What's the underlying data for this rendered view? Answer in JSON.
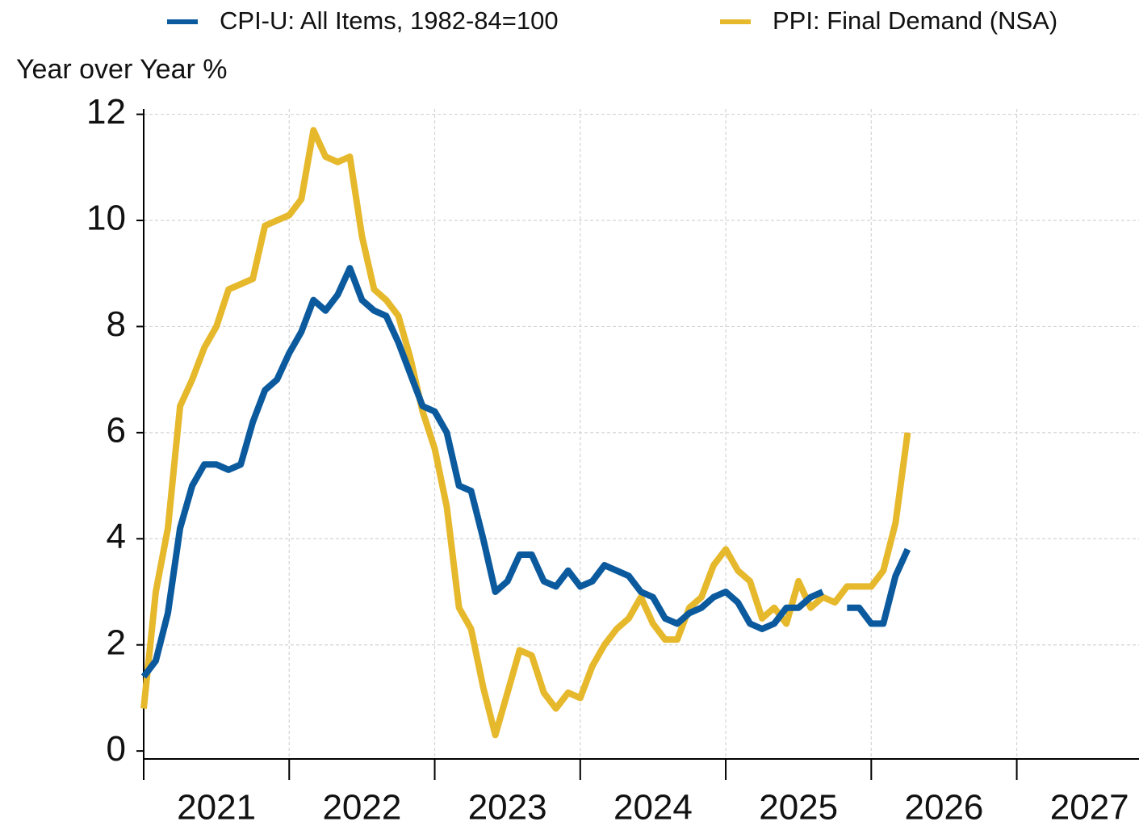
{
  "chart_data": {
    "type": "line",
    "y_label": "Year over Year %",
    "x": [
      "2021-01",
      "2021-02",
      "2021-03",
      "2021-04",
      "2021-05",
      "2021-06",
      "2021-07",
      "2021-08",
      "2021-09",
      "2021-10",
      "2021-11",
      "2021-12",
      "2022-01",
      "2022-02",
      "2022-03",
      "2022-04",
      "2022-05",
      "2022-06",
      "2022-07",
      "2022-08",
      "2022-09",
      "2022-10",
      "2022-11",
      "2022-12",
      "2023-01",
      "2023-02",
      "2023-03",
      "2023-04",
      "2023-05",
      "2023-06",
      "2023-07",
      "2023-08",
      "2023-09",
      "2023-10",
      "2023-11",
      "2023-12",
      "2024-01",
      "2024-02",
      "2024-03",
      "2024-04",
      "2024-05",
      "2024-06",
      "2024-07",
      "2024-08",
      "2024-09",
      "2024-10",
      "2024-11",
      "2024-12",
      "2025-01",
      "2025-02",
      "2025-03",
      "2025-04",
      "2025-05",
      "2025-06",
      "2025-07",
      "2025-08",
      "2025-09",
      "2025-10",
      "2025-11",
      "2025-12",
      "2026-01",
      "2026-02",
      "2026-03",
      "2026-04"
    ],
    "series": [
      {
        "name": "CPI-U: All Items, 1982-84=100",
        "color": "#0b5a9e",
        "values": [
          1.4,
          1.7,
          2.6,
          4.2,
          5.0,
          5.4,
          5.4,
          5.3,
          5.4,
          6.2,
          6.8,
          7.0,
          7.5,
          7.9,
          8.5,
          8.3,
          8.6,
          9.1,
          8.5,
          8.3,
          8.2,
          7.7,
          7.1,
          6.5,
          6.4,
          6.0,
          5.0,
          4.9,
          4.0,
          3.0,
          3.2,
          3.7,
          3.7,
          3.2,
          3.1,
          3.4,
          3.1,
          3.2,
          3.5,
          3.4,
          3.3,
          3.0,
          2.9,
          2.5,
          2.4,
          2.6,
          2.7,
          2.9,
          3.0,
          2.8,
          2.4,
          2.3,
          2.4,
          2.7,
          2.7,
          2.9,
          3.0,
          null,
          2.7,
          2.7,
          2.4,
          2.4,
          3.3,
          3.8
        ]
      },
      {
        "name": "PPI: Final Demand (NSA)",
        "color": "#e6b82c",
        "values": [
          0.8,
          3.0,
          4.2,
          6.5,
          7.0,
          7.6,
          8.0,
          8.7,
          8.8,
          8.9,
          9.9,
          10.0,
          10.1,
          10.4,
          11.7,
          11.2,
          11.1,
          11.2,
          9.7,
          8.7,
          8.5,
          8.2,
          7.4,
          6.4,
          5.7,
          4.6,
          2.7,
          2.3,
          1.2,
          0.3,
          1.1,
          1.9,
          1.8,
          1.1,
          0.8,
          1.1,
          1.0,
          1.6,
          2.0,
          2.3,
          2.5,
          2.9,
          2.4,
          2.1,
          2.1,
          2.7,
          2.9,
          3.5,
          3.8,
          3.4,
          3.2,
          2.5,
          2.7,
          2.4,
          3.2,
          2.7,
          2.9,
          2.8,
          3.1,
          3.1,
          3.1,
          3.4,
          4.3,
          6.0
        ]
      }
    ],
    "xlim": [
      2021,
      2027.84
    ],
    "xticks": [
      2021,
      2022,
      2023,
      2024,
      2025,
      2026,
      2027
    ],
    "ylim": [
      -0.15,
      12.1
    ],
    "yticks": [
      0,
      2,
      4,
      6,
      8,
      10,
      12
    ],
    "grid": true
  }
}
